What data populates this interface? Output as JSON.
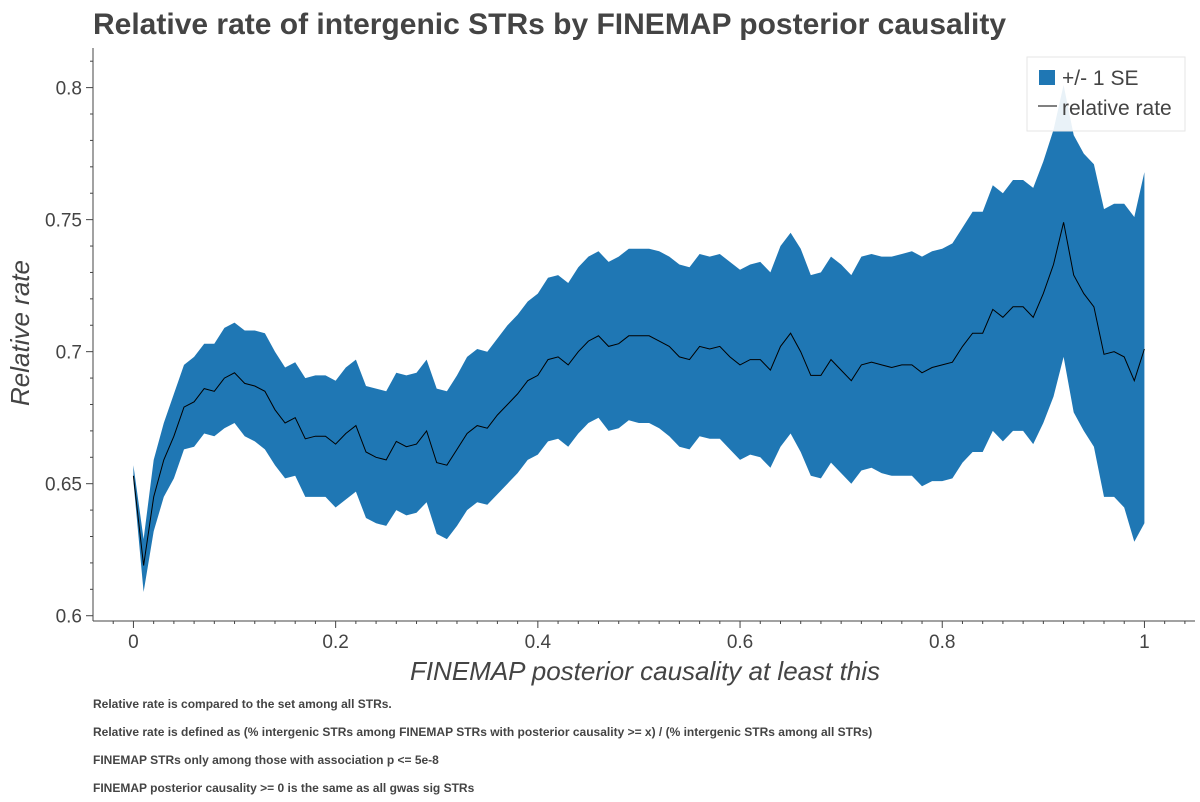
{
  "chart_data": {
    "type": "area",
    "title": "Relative rate of intergenic STRs by FINEMAP posterior causality",
    "xlabel": "FINEMAP posterior causality at least this",
    "ylabel": "Relative rate",
    "xlim": [
      -0.04,
      1.05
    ],
    "ylim": [
      0.598,
      0.815
    ],
    "x_ticks": [
      0,
      0.2,
      0.4,
      0.6,
      0.8,
      1
    ],
    "x_tick_labels": [
      "0",
      "0.2",
      "0.4",
      "0.6",
      "0.8",
      "1"
    ],
    "y_ticks": [
      0.6,
      0.65,
      0.7,
      0.75,
      0.8
    ],
    "y_tick_labels": [
      "0.6",
      "0.65",
      "0.7",
      "0.75",
      "0.8"
    ],
    "grid": false,
    "legend_position": "top-right",
    "legend": [
      {
        "label": "+/- 1 SE",
        "kind": "patch",
        "color": "#1f77b4"
      },
      {
        "label": "relative rate",
        "kind": "line",
        "color": "#000000"
      }
    ],
    "band_color": "#1f77b4",
    "line_color": "#000000",
    "x": [
      0,
      0.01,
      0.02,
      0.03,
      0.04,
      0.05,
      0.06,
      0.07,
      0.08,
      0.09,
      0.1,
      0.11,
      0.12,
      0.13,
      0.14,
      0.15,
      0.16,
      0.17,
      0.18,
      0.19,
      0.2,
      0.21,
      0.22,
      0.23,
      0.24,
      0.25,
      0.26,
      0.27,
      0.28,
      0.29,
      0.3,
      0.31,
      0.32,
      0.33,
      0.34,
      0.35,
      0.36,
      0.37,
      0.38,
      0.39,
      0.4,
      0.41,
      0.42,
      0.43,
      0.44,
      0.45,
      0.46,
      0.47,
      0.48,
      0.49,
      0.5,
      0.51,
      0.52,
      0.53,
      0.54,
      0.55,
      0.56,
      0.57,
      0.58,
      0.59,
      0.6,
      0.61,
      0.62,
      0.63,
      0.64,
      0.65,
      0.66,
      0.67,
      0.68,
      0.69,
      0.7,
      0.71,
      0.72,
      0.73,
      0.74,
      0.75,
      0.76,
      0.77,
      0.78,
      0.79,
      0.8,
      0.81,
      0.82,
      0.83,
      0.84,
      0.85,
      0.86,
      0.87,
      0.88,
      0.89,
      0.9,
      0.91,
      0.92,
      0.93,
      0.94,
      0.95,
      0.96,
      0.97,
      0.98,
      0.99,
      1.0
    ],
    "series": [
      {
        "name": "relative rate",
        "values": [
          0.653,
          0.619,
          0.645,
          0.659,
          0.668,
          0.679,
          0.681,
          0.686,
          0.685,
          0.69,
          0.692,
          0.688,
          0.687,
          0.685,
          0.678,
          0.673,
          0.675,
          0.667,
          0.668,
          0.668,
          0.665,
          0.669,
          0.672,
          0.662,
          0.66,
          0.659,
          0.666,
          0.664,
          0.665,
          0.67,
          0.658,
          0.657,
          0.663,
          0.669,
          0.672,
          0.671,
          0.676,
          0.68,
          0.684,
          0.689,
          0.691,
          0.697,
          0.698,
          0.695,
          0.7,
          0.704,
          0.706,
          0.702,
          0.703,
          0.706,
          0.706,
          0.706,
          0.704,
          0.702,
          0.698,
          0.697,
          0.702,
          0.701,
          0.702,
          0.698,
          0.695,
          0.697,
          0.697,
          0.693,
          0.702,
          0.707,
          0.7,
          0.691,
          0.691,
          0.697,
          0.693,
          0.689,
          0.695,
          0.696,
          0.695,
          0.694,
          0.695,
          0.695,
          0.692,
          0.694,
          0.695,
          0.696,
          0.702,
          0.707,
          0.707,
          0.716,
          0.713,
          0.717,
          0.717,
          0.713,
          0.722,
          0.733,
          0.749,
          0.729,
          0.722,
          0.717,
          0.699,
          0.7,
          0.698,
          0.689,
          0.701
        ]
      },
      {
        "name": "+/- 1 SE lower",
        "values": [
          0.651,
          0.609,
          0.632,
          0.645,
          0.652,
          0.663,
          0.664,
          0.669,
          0.668,
          0.671,
          0.673,
          0.668,
          0.666,
          0.663,
          0.657,
          0.652,
          0.653,
          0.645,
          0.645,
          0.645,
          0.641,
          0.644,
          0.647,
          0.637,
          0.635,
          0.634,
          0.64,
          0.638,
          0.639,
          0.643,
          0.631,
          0.629,
          0.634,
          0.64,
          0.643,
          0.642,
          0.646,
          0.65,
          0.654,
          0.659,
          0.661,
          0.666,
          0.667,
          0.664,
          0.669,
          0.673,
          0.675,
          0.67,
          0.671,
          0.674,
          0.673,
          0.673,
          0.671,
          0.668,
          0.664,
          0.663,
          0.668,
          0.667,
          0.667,
          0.663,
          0.659,
          0.661,
          0.66,
          0.656,
          0.664,
          0.669,
          0.662,
          0.653,
          0.652,
          0.658,
          0.654,
          0.65,
          0.655,
          0.656,
          0.654,
          0.653,
          0.653,
          0.653,
          0.649,
          0.651,
          0.651,
          0.652,
          0.658,
          0.662,
          0.662,
          0.67,
          0.666,
          0.67,
          0.67,
          0.665,
          0.673,
          0.683,
          0.698,
          0.677,
          0.67,
          0.664,
          0.645,
          0.645,
          0.641,
          0.628,
          0.635
        ]
      },
      {
        "name": "+/- 1 SE upper",
        "values": [
          0.657,
          0.629,
          0.659,
          0.673,
          0.684,
          0.695,
          0.698,
          0.703,
          0.703,
          0.709,
          0.711,
          0.708,
          0.708,
          0.707,
          0.7,
          0.694,
          0.696,
          0.69,
          0.691,
          0.691,
          0.689,
          0.694,
          0.697,
          0.687,
          0.686,
          0.685,
          0.692,
          0.691,
          0.692,
          0.697,
          0.686,
          0.685,
          0.691,
          0.698,
          0.701,
          0.7,
          0.705,
          0.71,
          0.714,
          0.719,
          0.722,
          0.728,
          0.729,
          0.726,
          0.732,
          0.736,
          0.738,
          0.734,
          0.736,
          0.739,
          0.739,
          0.739,
          0.738,
          0.736,
          0.733,
          0.732,
          0.737,
          0.736,
          0.737,
          0.734,
          0.731,
          0.733,
          0.734,
          0.73,
          0.74,
          0.745,
          0.739,
          0.729,
          0.73,
          0.736,
          0.733,
          0.729,
          0.736,
          0.737,
          0.736,
          0.736,
          0.737,
          0.738,
          0.736,
          0.738,
          0.739,
          0.741,
          0.747,
          0.753,
          0.753,
          0.763,
          0.76,
          0.765,
          0.765,
          0.762,
          0.772,
          0.784,
          0.801,
          0.782,
          0.775,
          0.771,
          0.754,
          0.756,
          0.756,
          0.751,
          0.768
        ]
      }
    ]
  },
  "notes": [
    "Relative rate is compared to the set among all STRs.",
    "Relative rate is defined as (% intergenic STRs among FINEMAP STRs with posterior causality >= x) / (% intergenic STRs among all STRs)",
    "FINEMAP STRs only among those with association p <= 5e-8",
    "FINEMAP posterior causality >= 0 is the same as all gwas sig STRs"
  ]
}
